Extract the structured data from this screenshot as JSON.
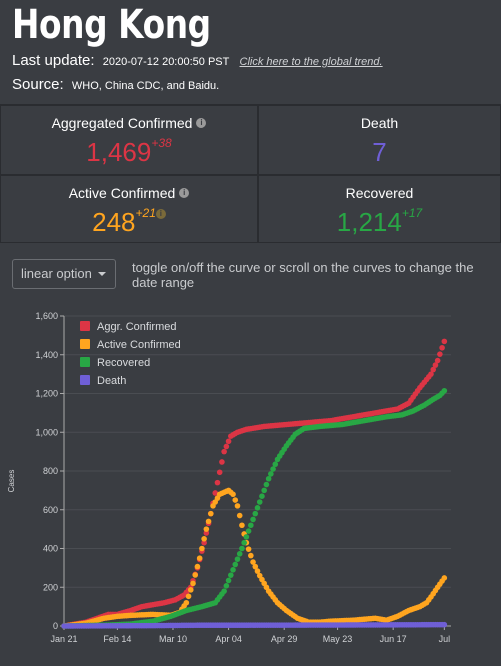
{
  "header": {
    "title": "Hong Kong",
    "last_update_label": "Last update:",
    "last_update_value": "2020-07-12 20:00:50 PST",
    "global_link": "Click here to the global trend.",
    "source_label": "Source:",
    "source_value": "WHO, China CDC, and Baidu."
  },
  "cards": {
    "aggregated": {
      "label": "Aggregated Confirmed",
      "value": "1,469",
      "delta": "+38",
      "color": "#dc3545"
    },
    "death": {
      "label": "Death",
      "value": "7",
      "delta": "",
      "color": "#6f5fd6"
    },
    "active": {
      "label": "Active Confirmed",
      "value": "248",
      "delta": "+21",
      "color": "#ffa51f"
    },
    "recovered": {
      "label": "Recovered",
      "value": "1,214",
      "delta": "+17",
      "color": "#28a745"
    }
  },
  "controls": {
    "scale_option": "linear option",
    "hint": "toggle on/off the curve or scroll on the curves to change the date range"
  },
  "chart_data": {
    "type": "scatter",
    "ylabel": "Cases",
    "xlabel": "",
    "ylim": [
      0,
      1600
    ],
    "yticks": [
      "0",
      "200",
      "400",
      "600",
      "800",
      "1,000",
      "1,200",
      "1,400",
      "1,600"
    ],
    "xticks": [
      "Jan 21",
      "Feb 14",
      "Mar 10",
      "Apr 04",
      "Apr 29",
      "May 23",
      "Jun 17",
      "Jul"
    ],
    "xtick_days": [
      0,
      24,
      49,
      74,
      99,
      123,
      148,
      171
    ],
    "x_days_max": 174,
    "legend_position": "top-left",
    "series": [
      {
        "name": "Aggr. Confirmed",
        "color": "#dc3545",
        "points": [
          [
            0,
            0
          ],
          [
            5,
            10
          ],
          [
            10,
            20
          ],
          [
            15,
            40
          ],
          [
            20,
            60
          ],
          [
            24,
            60
          ],
          [
            30,
            80
          ],
          [
            35,
            100
          ],
          [
            40,
            110
          ],
          [
            45,
            120
          ],
          [
            50,
            135
          ],
          [
            54,
            160
          ],
          [
            57,
            200
          ],
          [
            60,
            300
          ],
          [
            63,
            430
          ],
          [
            66,
            580
          ],
          [
            69,
            740
          ],
          [
            72,
            900
          ],
          [
            75,
            980
          ],
          [
            78,
            1000
          ],
          [
            82,
            1015
          ],
          [
            90,
            1030
          ],
          [
            100,
            1040
          ],
          [
            110,
            1050
          ],
          [
            120,
            1060
          ],
          [
            130,
            1080
          ],
          [
            140,
            1100
          ],
          [
            150,
            1120
          ],
          [
            155,
            1150
          ],
          [
            160,
            1230
          ],
          [
            165,
            1300
          ],
          [
            168,
            1370
          ],
          [
            171,
            1469
          ]
        ]
      },
      {
        "name": "Active Confirmed",
        "color": "#ffa51f",
        "points": [
          [
            0,
            0
          ],
          [
            10,
            15
          ],
          [
            18,
            40
          ],
          [
            24,
            50
          ],
          [
            30,
            55
          ],
          [
            40,
            60
          ],
          [
            48,
            55
          ],
          [
            52,
            70
          ],
          [
            55,
            120
          ],
          [
            58,
            220
          ],
          [
            61,
            350
          ],
          [
            64,
            500
          ],
          [
            67,
            620
          ],
          [
            70,
            680
          ],
          [
            72,
            690
          ],
          [
            74,
            700
          ],
          [
            76,
            680
          ],
          [
            78,
            620
          ],
          [
            80,
            520
          ],
          [
            82,
            430
          ],
          [
            85,
            330
          ],
          [
            88,
            260
          ],
          [
            92,
            180
          ],
          [
            96,
            120
          ],
          [
            100,
            80
          ],
          [
            105,
            40
          ],
          [
            110,
            20
          ],
          [
            115,
            20
          ],
          [
            120,
            25
          ],
          [
            130,
            30
          ],
          [
            140,
            40
          ],
          [
            145,
            30
          ],
          [
            150,
            50
          ],
          [
            155,
            80
          ],
          [
            160,
            100
          ],
          [
            163,
            120
          ],
          [
            165,
            150
          ],
          [
            168,
            200
          ],
          [
            171,
            248
          ]
        ]
      },
      {
        "name": "Recovered",
        "color": "#28a745",
        "points": [
          [
            0,
            0
          ],
          [
            20,
            5
          ],
          [
            30,
            10
          ],
          [
            40,
            25
          ],
          [
            48,
            50
          ],
          [
            55,
            80
          ],
          [
            62,
            100
          ],
          [
            68,
            120
          ],
          [
            72,
            180
          ],
          [
            76,
            290
          ],
          [
            80,
            400
          ],
          [
            84,
            520
          ],
          [
            88,
            640
          ],
          [
            92,
            760
          ],
          [
            96,
            860
          ],
          [
            100,
            930
          ],
          [
            104,
            990
          ],
          [
            108,
            1020
          ],
          [
            115,
            1030
          ],
          [
            125,
            1040
          ],
          [
            135,
            1060
          ],
          [
            145,
            1080
          ],
          [
            152,
            1090
          ],
          [
            157,
            1110
          ],
          [
            162,
            1140
          ],
          [
            166,
            1170
          ],
          [
            169,
            1190
          ],
          [
            171,
            1214
          ]
        ]
      },
      {
        "name": "Death",
        "color": "#6f5fd6",
        "points": [
          [
            0,
            0
          ],
          [
            40,
            2
          ],
          [
            60,
            4
          ],
          [
            80,
            4
          ],
          [
            120,
            5
          ],
          [
            150,
            6
          ],
          [
            171,
            7
          ]
        ]
      }
    ]
  }
}
